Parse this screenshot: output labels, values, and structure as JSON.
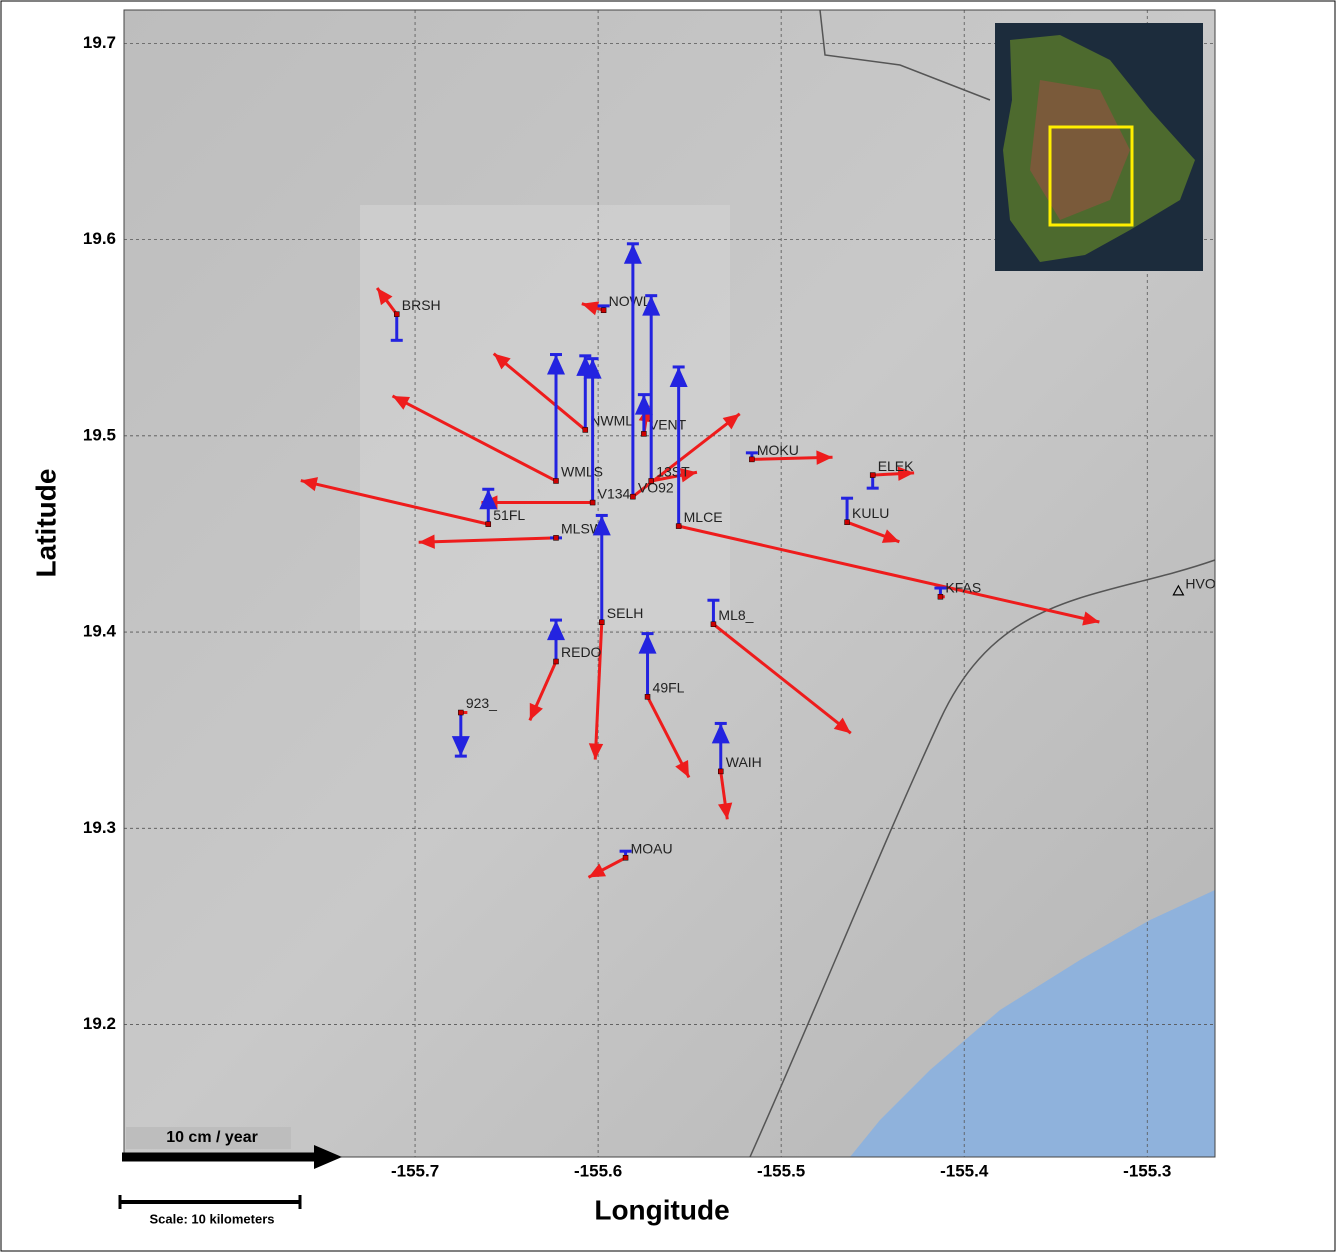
{
  "map": {
    "y_label": "Latitude",
    "x_label": "Longitude",
    "xlim": [
      -155.859,
      -155.263
    ],
    "ylim": [
      19.1325,
      19.717
    ],
    "xticks": [
      -155.7,
      -155.6,
      -155.5,
      -155.4,
      -155.3
    ],
    "yticks": [
      19.2,
      19.3,
      19.4,
      19.5,
      19.6,
      19.7
    ],
    "velocity_legend": "10 cm / year",
    "scale_bar": "Scale: 10 kilometers",
    "landmark": {
      "name": "HVO",
      "lon": -155.283,
      "lat": 19.421
    },
    "stations": [
      {
        "name": "BRSH",
        "lon": -155.71,
        "lat": 19.562,
        "east": -0.9,
        "north": 1.2,
        "up": -1.2
      },
      {
        "name": "NOWL",
        "lon": -155.597,
        "lat": 19.564,
        "east": -1.0,
        "north": 0.3,
        "up": 0.2
      },
      {
        "name": "NWML",
        "lon": -155.607,
        "lat": 19.503,
        "east": -4.2,
        "north": 3.5,
        "up": 3.4
      },
      {
        "name": "VENT",
        "lon": -155.575,
        "lat": 19.501,
        "east": 0.2,
        "north": 1.3,
        "up": 1.8
      },
      {
        "name": "WMLS",
        "lon": -155.623,
        "lat": 19.477,
        "east": -7.5,
        "north": 3.9,
        "up": 5.8
      },
      {
        "name": "V134",
        "lon": -155.603,
        "lat": 19.466,
        "east": -5.1,
        "north": 0,
        "up": 6.6
      },
      {
        "name": "VO92",
        "lon": -155.581,
        "lat": 19.469,
        "east": 4.9,
        "north": 3.8,
        "up": 11.6
      },
      {
        "name": "13ST",
        "lon": -155.571,
        "lat": 19.477,
        "east": 2.1,
        "north": 0.4,
        "up": 8.5
      },
      {
        "name": "MLCE",
        "lon": -155.556,
        "lat": 19.454,
        "east": 19.3,
        "north": -4.4,
        "up": 7.3
      },
      {
        "name": "MOKU",
        "lon": -155.516,
        "lat": 19.488,
        "east": 3.7,
        "north": 0.1,
        "up": 0.3
      },
      {
        "name": "ELEK",
        "lon": -155.45,
        "lat": 19.48,
        "east": 1.9,
        "north": 0.1,
        "up": -0.6
      },
      {
        "name": "KULU",
        "lon": -155.464,
        "lat": 19.456,
        "east": 2.4,
        "north": -0.9,
        "up": 1.1
      },
      {
        "name": "KFAS",
        "lon": -155.413,
        "lat": 19.418,
        "east": 0.2,
        "north": 0,
        "up": 0.4
      },
      {
        "name": "51FL",
        "lon": -155.66,
        "lat": 19.455,
        "east": -8.6,
        "north": 2.0,
        "up": 1.6
      },
      {
        "name": "MLSW",
        "lon": -155.623,
        "lat": 19.448,
        "east": -6.3,
        "north": -0.2,
        "up": 0
      },
      {
        "name": "SELH",
        "lon": -155.598,
        "lat": 19.405,
        "east": -0.3,
        "north": -6.3,
        "up": 4.9
      },
      {
        "name": "ML8_",
        "lon": -155.537,
        "lat": 19.404,
        "east": 6.3,
        "north": -5.0,
        "up": 1.1
      },
      {
        "name": "REDO",
        "lon": -155.623,
        "lat": 19.385,
        "east": -1.2,
        "north": -2.7,
        "up": 1.9
      },
      {
        "name": "49FL",
        "lon": -155.573,
        "lat": 19.367,
        "east": 1.9,
        "north": -3.7,
        "up": 2.9
      },
      {
        "name": "923_",
        "lon": -155.675,
        "lat": 19.359,
        "east": 0.3,
        "north": 0,
        "up": -2.0
      },
      {
        "name": "WAIH",
        "lon": -155.533,
        "lat": 19.329,
        "east": 0.3,
        "north": -2.2,
        "up": 2.2
      },
      {
        "name": "MOAU",
        "lon": -155.585,
        "lat": 19.285,
        "east": -1.7,
        "north": -0.9,
        "up": 0.3
      }
    ]
  }
}
